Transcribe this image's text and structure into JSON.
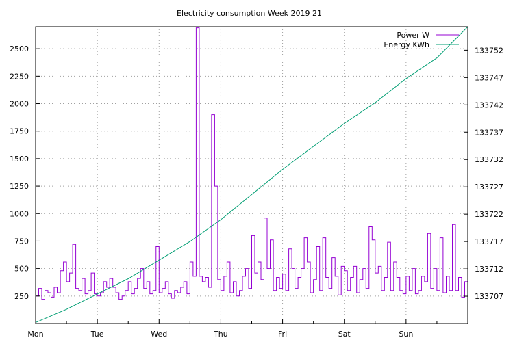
{
  "chart_data": {
    "type": "line",
    "title": "Electricity consumption Week 2019 21",
    "x_categories": [
      "Mon",
      "Tue",
      "Wed",
      "Thu",
      "Fri",
      "Sat",
      "Sun"
    ],
    "x_range_days": [
      0,
      7
    ],
    "grid": true,
    "legend_position": "top-right",
    "y_left": {
      "range": [
        0,
        2700
      ],
      "ticks": [
        250,
        500,
        750,
        1000,
        1250,
        1500,
        1750,
        2000,
        2250,
        2500
      ]
    },
    "y_right": {
      "range": [
        133702.0,
        133756.3
      ],
      "ticks": [
        133707,
        133712,
        133717,
        133722,
        133727,
        133732,
        133737,
        133742,
        133747,
        133752
      ]
    },
    "series": [
      {
        "name": "Power W",
        "axis": "left",
        "color": "#9400d3",
        "points": [
          [
            0.0,
            250
          ],
          [
            0.05,
            320
          ],
          [
            0.1,
            220
          ],
          [
            0.15,
            300
          ],
          [
            0.2,
            280
          ],
          [
            0.25,
            240
          ],
          [
            0.3,
            330
          ],
          [
            0.35,
            280
          ],
          [
            0.4,
            480
          ],
          [
            0.45,
            560
          ],
          [
            0.5,
            380
          ],
          [
            0.55,
            460
          ],
          [
            0.6,
            720
          ],
          [
            0.65,
            320
          ],
          [
            0.7,
            300
          ],
          [
            0.75,
            410
          ],
          [
            0.8,
            270
          ],
          [
            0.85,
            300
          ],
          [
            0.9,
            460
          ],
          [
            0.95,
            270
          ],
          [
            1.0,
            250
          ],
          [
            1.05,
            280
          ],
          [
            1.1,
            380
          ],
          [
            1.15,
            330
          ],
          [
            1.2,
            410
          ],
          [
            1.25,
            330
          ],
          [
            1.3,
            280
          ],
          [
            1.35,
            220
          ],
          [
            1.4,
            250
          ],
          [
            1.45,
            300
          ],
          [
            1.5,
            380
          ],
          [
            1.55,
            270
          ],
          [
            1.6,
            320
          ],
          [
            1.65,
            410
          ],
          [
            1.7,
            500
          ],
          [
            1.75,
            320
          ],
          [
            1.8,
            380
          ],
          [
            1.85,
            270
          ],
          [
            1.9,
            300
          ],
          [
            1.95,
            700
          ],
          [
            2.0,
            280
          ],
          [
            2.05,
            320
          ],
          [
            2.1,
            380
          ],
          [
            2.15,
            270
          ],
          [
            2.2,
            230
          ],
          [
            2.25,
            300
          ],
          [
            2.3,
            280
          ],
          [
            2.35,
            330
          ],
          [
            2.4,
            380
          ],
          [
            2.45,
            270
          ],
          [
            2.5,
            560
          ],
          [
            2.55,
            430
          ],
          [
            2.6,
            2690
          ],
          [
            2.65,
            430
          ],
          [
            2.7,
            380
          ],
          [
            2.75,
            420
          ],
          [
            2.8,
            330
          ],
          [
            2.85,
            1900
          ],
          [
            2.9,
            1250
          ],
          [
            2.95,
            400
          ],
          [
            3.0,
            300
          ],
          [
            3.05,
            430
          ],
          [
            3.1,
            560
          ],
          [
            3.15,
            280
          ],
          [
            3.2,
            380
          ],
          [
            3.25,
            250
          ],
          [
            3.3,
            300
          ],
          [
            3.35,
            430
          ],
          [
            3.4,
            500
          ],
          [
            3.45,
            320
          ],
          [
            3.5,
            800
          ],
          [
            3.55,
            460
          ],
          [
            3.6,
            560
          ],
          [
            3.65,
            400
          ],
          [
            3.7,
            960
          ],
          [
            3.75,
            500
          ],
          [
            3.8,
            760
          ],
          [
            3.85,
            300
          ],
          [
            3.9,
            420
          ],
          [
            3.95,
            320
          ],
          [
            4.0,
            450
          ],
          [
            4.05,
            300
          ],
          [
            4.1,
            680
          ],
          [
            4.15,
            500
          ],
          [
            4.2,
            320
          ],
          [
            4.25,
            420
          ],
          [
            4.3,
            500
          ],
          [
            4.35,
            780
          ],
          [
            4.4,
            560
          ],
          [
            4.45,
            280
          ],
          [
            4.5,
            400
          ],
          [
            4.55,
            700
          ],
          [
            4.6,
            300
          ],
          [
            4.65,
            780
          ],
          [
            4.7,
            420
          ],
          [
            4.75,
            320
          ],
          [
            4.8,
            600
          ],
          [
            4.85,
            430
          ],
          [
            4.9,
            260
          ],
          [
            4.95,
            520
          ],
          [
            5.0,
            480
          ],
          [
            5.05,
            300
          ],
          [
            5.1,
            420
          ],
          [
            5.15,
            520
          ],
          [
            5.2,
            280
          ],
          [
            5.25,
            400
          ],
          [
            5.3,
            500
          ],
          [
            5.35,
            320
          ],
          [
            5.4,
            880
          ],
          [
            5.45,
            760
          ],
          [
            5.5,
            460
          ],
          [
            5.55,
            520
          ],
          [
            5.6,
            300
          ],
          [
            5.65,
            420
          ],
          [
            5.7,
            740
          ],
          [
            5.75,
            300
          ],
          [
            5.8,
            560
          ],
          [
            5.85,
            420
          ],
          [
            5.9,
            300
          ],
          [
            5.95,
            270
          ],
          [
            6.0,
            430
          ],
          [
            6.05,
            300
          ],
          [
            6.1,
            500
          ],
          [
            6.15,
            270
          ],
          [
            6.2,
            300
          ],
          [
            6.25,
            430
          ],
          [
            6.3,
            380
          ],
          [
            6.35,
            820
          ],
          [
            6.4,
            320
          ],
          [
            6.45,
            500
          ],
          [
            6.5,
            300
          ],
          [
            6.55,
            780
          ],
          [
            6.6,
            280
          ],
          [
            6.65,
            430
          ],
          [
            6.7,
            300
          ],
          [
            6.75,
            900
          ],
          [
            6.8,
            300
          ],
          [
            6.85,
            420
          ],
          [
            6.9,
            240
          ],
          [
            6.95,
            380
          ],
          [
            7.0,
            350
          ]
        ]
      },
      {
        "name": "Energy KWh",
        "axis": "right",
        "color": "#009e73",
        "points": [
          [
            0.0,
            133702.2
          ],
          [
            0.5,
            133704.6
          ],
          [
            1.0,
            133707.4
          ],
          [
            1.5,
            133710.2
          ],
          [
            2.0,
            133713.6
          ],
          [
            2.5,
            133717.0
          ],
          [
            3.0,
            133721.0
          ],
          [
            3.5,
            133725.6
          ],
          [
            4.0,
            133730.2
          ],
          [
            4.5,
            133734.4
          ],
          [
            5.0,
            133738.6
          ],
          [
            5.5,
            133742.4
          ],
          [
            6.0,
            133746.8
          ],
          [
            6.5,
            133750.6
          ],
          [
            7.0,
            133756.3
          ]
        ]
      }
    ]
  }
}
